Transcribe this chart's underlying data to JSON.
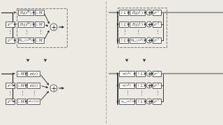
{
  "bg_color": "#ede9e3",
  "box_color": "#ffffff",
  "box_edge": "#444444",
  "dash_edge": "#777777",
  "arrow_color": "#222222",
  "text_color": "#111111",
  "gray_line": "#999999",
  "fig_width": 3.2,
  "fig_height": 1.8,
  "dpi": 100
}
